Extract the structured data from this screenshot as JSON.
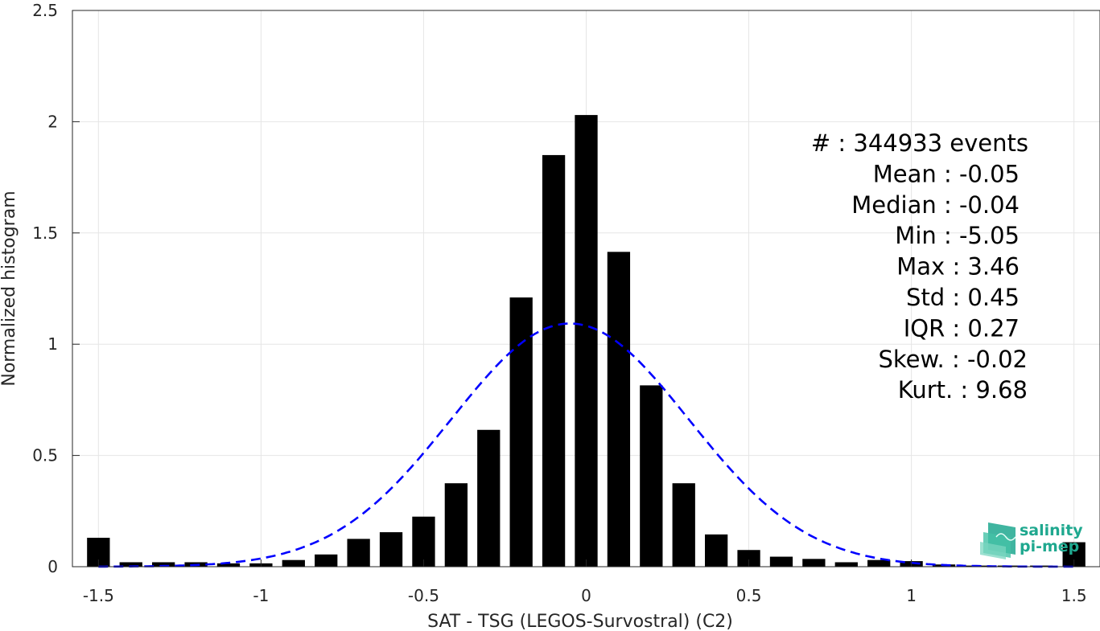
{
  "chart_data": {
    "type": "bar",
    "xlabel": "SAT - TSG (LEGOS-Survostral) (C2)",
    "ylabel": "Normalized histogram",
    "xlim": [
      -1.58,
      1.58
    ],
    "ylim": [
      0,
      2.5
    ],
    "xticks": [
      -1.5,
      -1,
      -0.5,
      0,
      0.5,
      1,
      1.5
    ],
    "xtick_labels": [
      "-1.5",
      "-1",
      "-0.5",
      "0",
      "0.5",
      "1",
      "1.5"
    ],
    "yticks": [
      0,
      0.5,
      1,
      1.5,
      2,
      2.5
    ],
    "ytick_labels": [
      "0",
      "0.5",
      "1",
      "1.5",
      "2",
      "2.5"
    ],
    "grid": true,
    "bin_centers": [
      -1.5,
      -1.4,
      -1.3,
      -1.2,
      -1.1,
      -1.0,
      -0.9,
      -0.8,
      -0.7,
      -0.6,
      -0.5,
      -0.4,
      -0.3,
      -0.2,
      -0.1,
      0.0,
      0.1,
      0.2,
      0.3,
      0.4,
      0.5,
      0.6,
      0.7,
      0.8,
      0.9,
      1.0,
      1.1,
      1.2,
      1.3,
      1.4,
      1.5
    ],
    "bar_width": 0.07,
    "values": [
      0.13,
      0.02,
      0.02,
      0.02,
      0.015,
      0.015,
      0.03,
      0.055,
      0.125,
      0.155,
      0.225,
      0.375,
      0.615,
      1.21,
      1.85,
      2.03,
      1.415,
      0.815,
      0.375,
      0.145,
      0.075,
      0.045,
      0.035,
      0.02,
      0.03,
      0.025,
      0.01,
      0.005,
      0.005,
      0.005,
      0.11
    ],
    "bar_color": "#000000",
    "fit_curve": {
      "kind": "gaussian",
      "mean": -0.05,
      "std": 0.365,
      "color": "#0000ff",
      "style": "dashed"
    },
    "stats_lines": [
      "#  : 344933 events",
      "Mean : -0.05",
      "Median : -0.04",
      "Min : -5.05",
      "Max : 3.46",
      "Std : 0.45",
      "IQR : 0.27",
      "Skew. : -0.02",
      "Kurt. : 9.68"
    ]
  },
  "logo": {
    "line1": "salinity",
    "line2": "pi-mep",
    "color": "#1fa88f"
  }
}
